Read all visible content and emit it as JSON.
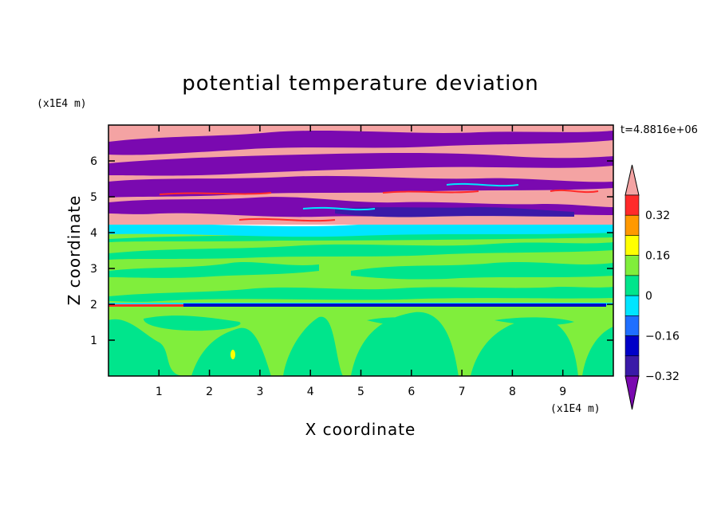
{
  "chart_data": {
    "type": "heatmap",
    "title": "potential temperature deviation",
    "xlabel": "X coordinate",
    "ylabel": "Z coordinate",
    "x_unit": "(x1E4 m)",
    "y_unit": "(x1E4 m)",
    "time_label": "t=4.8816e+06",
    "xlim": [
      0,
      10
    ],
    "ylim": [
      0,
      7
    ],
    "x_ticks": [
      1,
      2,
      3,
      4,
      5,
      6,
      7,
      8,
      9
    ],
    "y_ticks": [
      1,
      2,
      3,
      4,
      5,
      6
    ],
    "colorbar": {
      "levels": [
        -0.4,
        -0.32,
        -0.24,
        -0.16,
        -0.08,
        0,
        0.08,
        0.16,
        0.24,
        0.32,
        0.4
      ],
      "labeled_levels": [
        "0.32",
        "0.16",
        "0",
        "−0.16",
        "−0.32"
      ],
      "colors": [
        "#7a09b0",
        "#3a1aa8",
        "#0000c8",
        "#1f6fff",
        "#00e5ff",
        "#00e58c",
        "#80ee3c",
        "#ffff00",
        "#ff9900",
        "#ff2a2a",
        "#f4a3a3"
      ],
      "extend": "both"
    },
    "regions": [
      {
        "z_range": [
          0,
          2
        ],
        "description": "green/lime convective plumes"
      },
      {
        "z_range": [
          2,
          4.2
        ],
        "description": "lime and green bands"
      },
      {
        "z_range": [
          4.2,
          7
        ],
        "description": "alternating pink and purple layers"
      }
    ]
  }
}
